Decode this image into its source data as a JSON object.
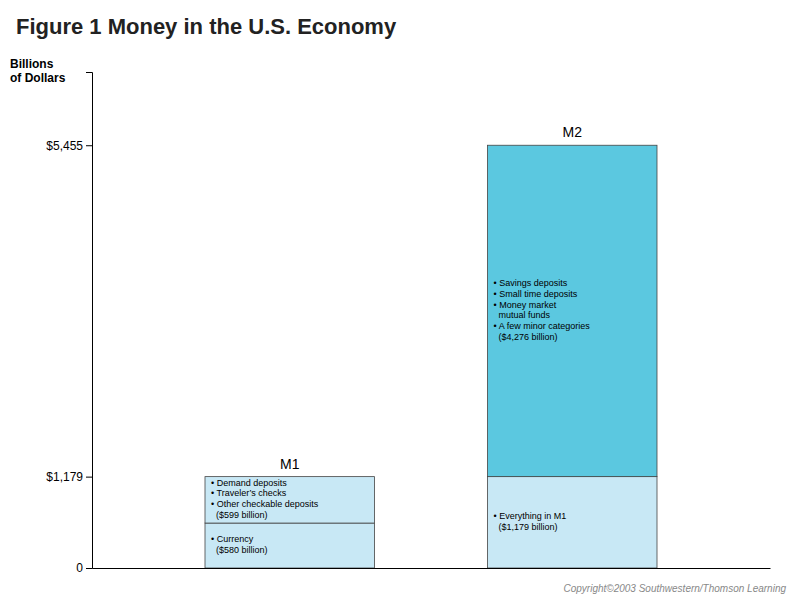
{
  "chart_data": {
    "type": "bar",
    "title": "Figure 1 Money in the U.S. Economy",
    "ylabel": "Billions\nof Dollars",
    "categories": [
      "M1",
      "M2"
    ],
    "stacked": true,
    "grid": false,
    "data_labels": true,
    "series": [
      {
        "color": "#C8E8F5",
        "values": [
          580,
          1179
        ],
        "value_labels": [
          "• Currency\n  ($580 billion)",
          "• Everything in M1\n  ($1,179 billion)"
        ]
      },
      {
        "colors": [
          "#C8E8F5",
          "#5BC8E0"
        ],
        "values": [
          599,
          4276
        ],
        "value_labels": [
          "• Demand deposits\n• Traveler’s checks\n• Other checkable deposits\n  ($599 billion)",
          "• Savings deposits\n• Small time deposits\n• Money market\n  mutual funds\n• A few minor categories\n  ($4,276 billion)"
        ]
      }
    ],
    "ylim": [
      0,
      6400
    ],
    "yticks": [
      0,
      {
        "value": 1179,
        "label": "$1,179"
      },
      {
        "value": 5455,
        "label": "$5,455"
      }
    ],
    "annotations": [
      "Copyright©2003  Southwestern/Thomson Learning"
    ]
  }
}
